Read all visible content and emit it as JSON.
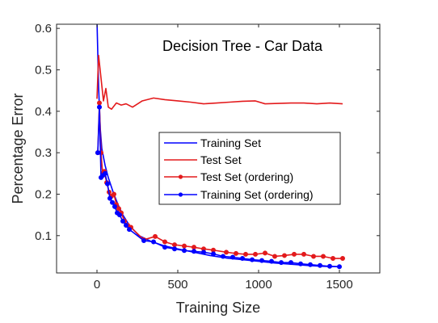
{
  "chart_data": {
    "type": "line",
    "title": "Decision Tree - Car Data",
    "xlabel": "Training Size",
    "ylabel": "Percentage Error",
    "xlim": [
      -250,
      1750
    ],
    "ylim": [
      0.01,
      0.61
    ],
    "xticks": [
      0,
      500,
      1000,
      1500
    ],
    "xtick_labels": [
      "0",
      "500",
      "1000",
      "1500"
    ],
    "yticks": [
      0.1,
      0.2,
      0.3,
      0.4,
      0.5,
      0.6
    ],
    "ytick_labels": [
      "0.1",
      "0.2",
      "0.3",
      "0.4",
      "0.5",
      "0.6"
    ],
    "grid": false,
    "legend_position": "center-right",
    "series": [
      {
        "name": "Training Set",
        "color": "#0000ff",
        "marker": "none",
        "x": [
          0,
          10,
          20,
          30,
          50,
          70,
          100,
          130,
          160,
          200,
          260,
          340,
          420,
          500,
          600,
          700,
          800,
          900,
          1000,
          1100,
          1200,
          1300,
          1400,
          1500
        ],
        "y": [
          0.62,
          0.46,
          0.36,
          0.31,
          0.27,
          0.24,
          0.205,
          0.175,
          0.15,
          0.125,
          0.1,
          0.085,
          0.075,
          0.068,
          0.06,
          0.052,
          0.046,
          0.042,
          0.038,
          0.034,
          0.031,
          0.028,
          0.026,
          0.025
        ]
      },
      {
        "name": "Test Set",
        "color": "#e31a1c",
        "marker": "none",
        "x": [
          0,
          10,
          25,
          40,
          55,
          70,
          90,
          120,
          150,
          180,
          220,
          280,
          350,
          420,
          500,
          580,
          660,
          740,
          820,
          900,
          980,
          1040,
          1120,
          1200,
          1280,
          1360,
          1440,
          1520
        ],
        "y": [
          0.43,
          0.535,
          0.48,
          0.425,
          0.455,
          0.41,
          0.405,
          0.42,
          0.415,
          0.418,
          0.41,
          0.425,
          0.432,
          0.428,
          0.425,
          0.422,
          0.418,
          0.42,
          0.422,
          0.424,
          0.425,
          0.418,
          0.419,
          0.42,
          0.42,
          0.418,
          0.42,
          0.418
        ]
      },
      {
        "name": "Test Set (ordering)",
        "color": "#e31a1c",
        "marker": "circle",
        "x": [
          5,
          15,
          25,
          35,
          45,
          60,
          75,
          90,
          105,
          120,
          135,
          150,
          170,
          190,
          210,
          290,
          360,
          420,
          480,
          540,
          600,
          660,
          720,
          800,
          860,
          920,
          980,
          1040,
          1100,
          1160,
          1220,
          1280,
          1340,
          1400,
          1460,
          1520
        ],
        "y": [
          0.3,
          0.42,
          0.3,
          0.25,
          0.255,
          0.228,
          0.205,
          0.195,
          0.2,
          0.175,
          0.165,
          0.155,
          0.135,
          0.125,
          0.12,
          0.09,
          0.098,
          0.085,
          0.078,
          0.075,
          0.072,
          0.068,
          0.065,
          0.06,
          0.057,
          0.055,
          0.055,
          0.058,
          0.05,
          0.052,
          0.055,
          0.055,
          0.05,
          0.05,
          0.045,
          0.045
        ]
      },
      {
        "name": "Training Set (ordering)",
        "color": "#0000ff",
        "marker": "circle",
        "x": [
          5,
          15,
          25,
          35,
          50,
          65,
          80,
          95,
          110,
          125,
          140,
          160,
          180,
          200,
          290,
          350,
          420,
          480,
          540,
          600,
          660,
          720,
          780,
          840,
          900,
          960,
          1020,
          1080,
          1140,
          1200,
          1260,
          1320,
          1380,
          1440,
          1500
        ],
        "y": [
          0.3,
          0.41,
          0.24,
          0.245,
          0.25,
          0.225,
          0.19,
          0.18,
          0.17,
          0.155,
          0.15,
          0.135,
          0.125,
          0.115,
          0.088,
          0.085,
          0.072,
          0.068,
          0.064,
          0.062,
          0.06,
          0.056,
          0.05,
          0.048,
          0.045,
          0.042,
          0.04,
          0.038,
          0.035,
          0.035,
          0.032,
          0.03,
          0.028,
          0.026,
          0.025
        ]
      }
    ]
  }
}
